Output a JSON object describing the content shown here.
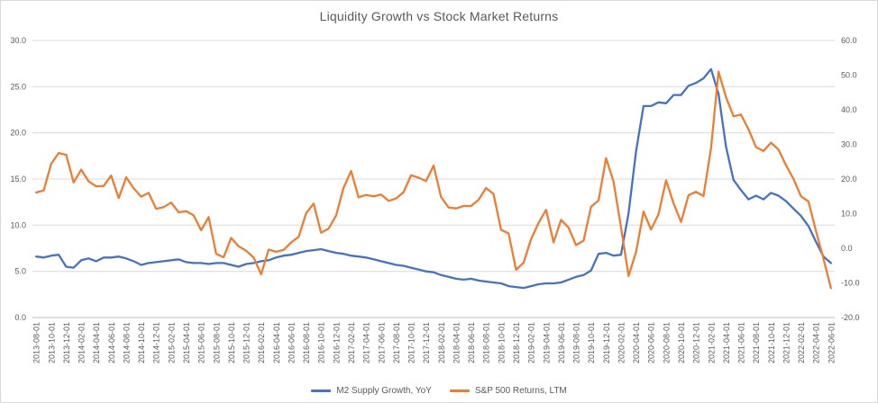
{
  "chart_data": {
    "type": "line",
    "title": "Liquidity Growth vs Stock Market Returns",
    "grid": true,
    "legend": {
      "position": "bottom"
    },
    "colors": {
      "grid": "#d9d9d9",
      "axis_line": "#bfbfbf",
      "text": "#595959"
    },
    "x_tick_every": 2,
    "x": [
      "2013-08-01",
      "2013-09-01",
      "2013-10-01",
      "2013-11-01",
      "2013-12-01",
      "2014-01-01",
      "2014-02-01",
      "2014-03-01",
      "2014-04-01",
      "2014-05-01",
      "2014-06-01",
      "2014-07-01",
      "2014-08-01",
      "2014-09-01",
      "2014-10-01",
      "2014-11-01",
      "2014-12-01",
      "2015-01-01",
      "2015-02-01",
      "2015-03-01",
      "2015-04-01",
      "2015-05-01",
      "2015-06-01",
      "2015-07-01",
      "2015-08-01",
      "2015-09-01",
      "2015-10-01",
      "2015-11-01",
      "2015-12-01",
      "2016-01-01",
      "2016-02-01",
      "2016-03-01",
      "2016-04-01",
      "2016-05-01",
      "2016-06-01",
      "2016-07-01",
      "2016-08-01",
      "2016-09-01",
      "2016-10-01",
      "2016-11-01",
      "2016-12-01",
      "2017-01-01",
      "2017-02-01",
      "2017-03-01",
      "2017-04-01",
      "2017-05-01",
      "2017-06-01",
      "2017-07-01",
      "2017-08-01",
      "2017-09-01",
      "2017-10-01",
      "2017-11-01",
      "2017-12-01",
      "2018-01-01",
      "2018-02-01",
      "2018-03-01",
      "2018-04-01",
      "2018-05-01",
      "2018-06-01",
      "2018-07-01",
      "2018-08-01",
      "2018-09-01",
      "2018-10-01",
      "2018-11-01",
      "2018-12-01",
      "2019-01-01",
      "2019-02-01",
      "2019-03-01",
      "2019-04-01",
      "2019-05-01",
      "2019-06-01",
      "2019-07-01",
      "2019-08-01",
      "2019-09-01",
      "2019-10-01",
      "2019-11-01",
      "2019-12-01",
      "2020-01-01",
      "2020-02-01",
      "2020-03-01",
      "2020-04-01",
      "2020-05-01",
      "2020-06-01",
      "2020-07-01",
      "2020-08-01",
      "2020-09-01",
      "2020-10-01",
      "2020-11-01",
      "2020-12-01",
      "2021-01-01",
      "2021-02-01",
      "2021-03-01",
      "2021-04-01",
      "2021-05-01",
      "2021-06-01",
      "2021-07-01",
      "2021-08-01",
      "2021-09-01",
      "2021-10-01",
      "2021-11-01",
      "2021-12-01",
      "2022-01-01",
      "2022-02-01",
      "2022-03-01",
      "2022-04-01",
      "2022-05-01",
      "2022-06-01"
    ],
    "left_axis": {
      "min": 0,
      "max": 30,
      "step": 5,
      "tick_labels": [
        "30.0",
        "25.0",
        "20.0",
        "15.0",
        "10.0",
        "5.0",
        "0.0"
      ]
    },
    "right_axis": {
      "min": -20,
      "max": 60,
      "step": 10,
      "tick_labels": [
        "60.0",
        "50.0",
        "40.0",
        "30.0",
        "20.0",
        "10.0",
        "0.0",
        "-10.0",
        "-20.0"
      ]
    },
    "series": [
      {
        "name": "M2 Supply Growth, YoY",
        "slug": "m2-supply-growth",
        "axis": "left",
        "color": "#4472C4",
        "values": [
          6.6,
          6.5,
          6.7,
          6.8,
          5.5,
          5.4,
          6.2,
          6.4,
          6.1,
          6.5,
          6.5,
          6.6,
          6.4,
          6.1,
          5.7,
          5.9,
          6.0,
          6.1,
          6.2,
          6.3,
          6.0,
          5.9,
          5.9,
          5.8,
          5.9,
          5.9,
          5.7,
          5.5,
          5.8,
          5.9,
          6.1,
          6.2,
          6.5,
          6.7,
          6.8,
          7.0,
          7.2,
          7.3,
          7.4,
          7.2,
          7.0,
          6.9,
          6.7,
          6.6,
          6.5,
          6.3,
          6.1,
          5.9,
          5.7,
          5.6,
          5.4,
          5.2,
          5.0,
          4.9,
          4.6,
          4.4,
          4.2,
          4.1,
          4.2,
          4.0,
          3.9,
          3.8,
          3.7,
          3.4,
          3.3,
          3.2,
          3.4,
          3.6,
          3.7,
          3.7,
          3.8,
          4.1,
          4.4,
          4.6,
          5.1,
          6.9,
          7.0,
          6.7,
          6.8,
          11.3,
          18.0,
          22.9,
          22.9,
          23.3,
          23.2,
          24.1,
          24.1,
          25.1,
          25.4,
          25.9,
          26.9,
          24.2,
          18.5,
          14.9,
          13.8,
          12.8,
          13.2,
          12.8,
          13.5,
          13.2,
          12.6,
          11.8,
          11.0,
          9.9,
          8.2,
          6.6,
          5.9
        ]
      },
      {
        "name": "S&P 500 Returns, LTM",
        "slug": "sp500-returns",
        "axis": "right",
        "color": "#ED7D31",
        "values": [
          16.1,
          16.7,
          24.4,
          27.5,
          27.0,
          19.0,
          22.7,
          19.3,
          17.9,
          18.0,
          21.0,
          14.5,
          20.5,
          17.3,
          14.9,
          16.0,
          11.4,
          11.9,
          13.2,
          10.4,
          10.7,
          9.5,
          5.2,
          9.0,
          -1.6,
          -2.6,
          3.0,
          0.6,
          -0.7,
          -2.7,
          -7.5,
          -0.4,
          -1.0,
          -0.5,
          1.7,
          3.3,
          10.1,
          12.9,
          4.5,
          5.7,
          9.5,
          17.5,
          22.3,
          14.7,
          15.4,
          15.0,
          15.5,
          13.7,
          14.4,
          16.2,
          21.1,
          20.4,
          19.4,
          23.9,
          14.8,
          11.8,
          11.5,
          12.2,
          12.2,
          14.0,
          17.4,
          15.7,
          5.3,
          4.3,
          -6.2,
          -4.2,
          2.6,
          7.3,
          11.1,
          1.7,
          8.2,
          6.0,
          0.9,
          2.2,
          12.0,
          13.8,
          26.0,
          19.3,
          6.1,
          -8.0,
          -1.1,
          10.6,
          5.4,
          9.8,
          19.6,
          13.0,
          7.6,
          15.3,
          16.3,
          15.1,
          29.0,
          51.0,
          43.6,
          38.1,
          38.6,
          34.4,
          29.2,
          28.1,
          30.5,
          28.5,
          24.0,
          20.0,
          15.0,
          13.5,
          5.0,
          -3.0,
          -11.5
        ]
      }
    ]
  }
}
